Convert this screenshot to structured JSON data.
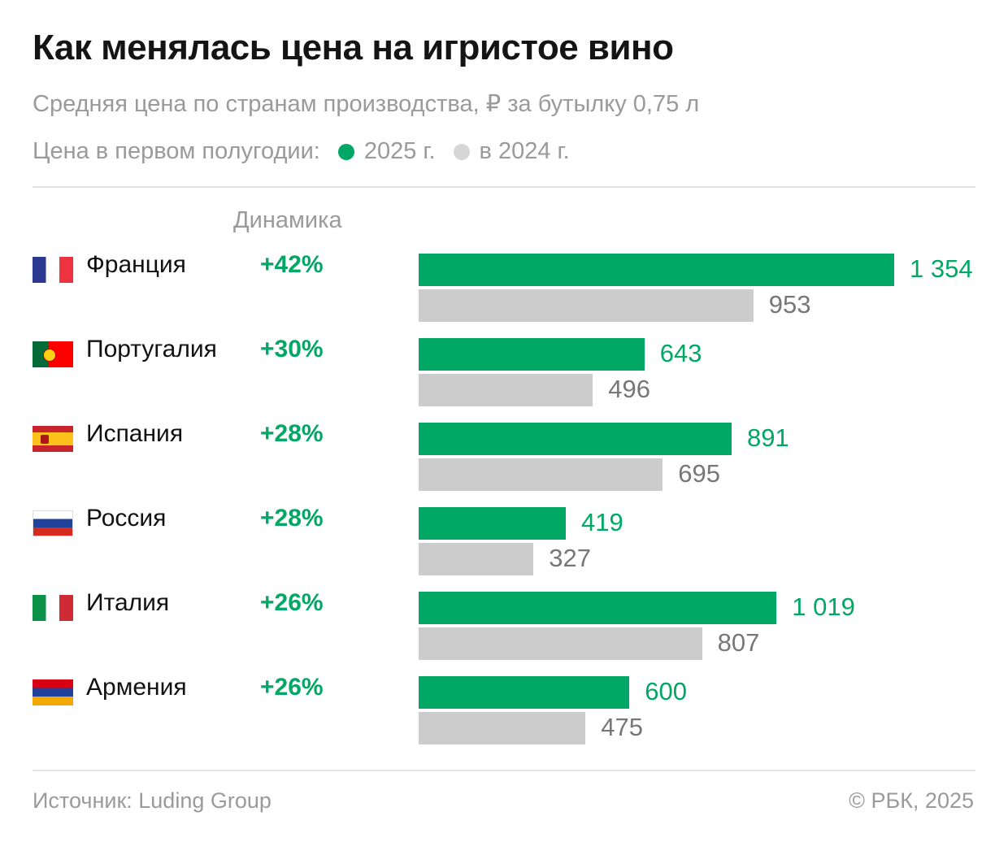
{
  "title": "Как менялась цена на игристое вино",
  "subtitle": "Средняя цена по странам производства, ₽ за бутылку 0,75 л",
  "legend": {
    "label": "Цена в первом полугодии:",
    "items": [
      {
        "name": "2025 г.",
        "color": "#00a765"
      },
      {
        "name": "в 2024 г.",
        "color": "#cccccc"
      }
    ]
  },
  "dynamics_header": "Динамика",
  "chart_data": {
    "type": "bar",
    "orientation": "horizontal",
    "categories": [
      "Франция",
      "Португалия",
      "Испания",
      "Россия",
      "Италия",
      "Армения"
    ],
    "change": [
      "+42%",
      "+30%",
      "+28%",
      "+28%",
      "+26%",
      "+26%"
    ],
    "flags": [
      "france-flag",
      "portugal-flag",
      "spain-flag",
      "russia-flag",
      "italy-flag",
      "armenia-flag"
    ],
    "series": [
      {
        "name": "2025 г.",
        "color": "#00a765",
        "values": [
          1354,
          643,
          891,
          419,
          1019,
          600
        ],
        "labels": [
          "1 354",
          "643",
          "891",
          "419",
          "1 019",
          "600"
        ]
      },
      {
        "name": "в 2024 г.",
        "color": "#cccccc",
        "values": [
          953,
          496,
          695,
          327,
          807,
          475
        ],
        "labels": [
          "953",
          "496",
          "695",
          "327",
          "807",
          "475"
        ]
      }
    ],
    "xlim": [
      0,
      1354
    ],
    "grid": false
  },
  "source": "Источник: Luding Group",
  "copyright": "© РБК, 2025"
}
